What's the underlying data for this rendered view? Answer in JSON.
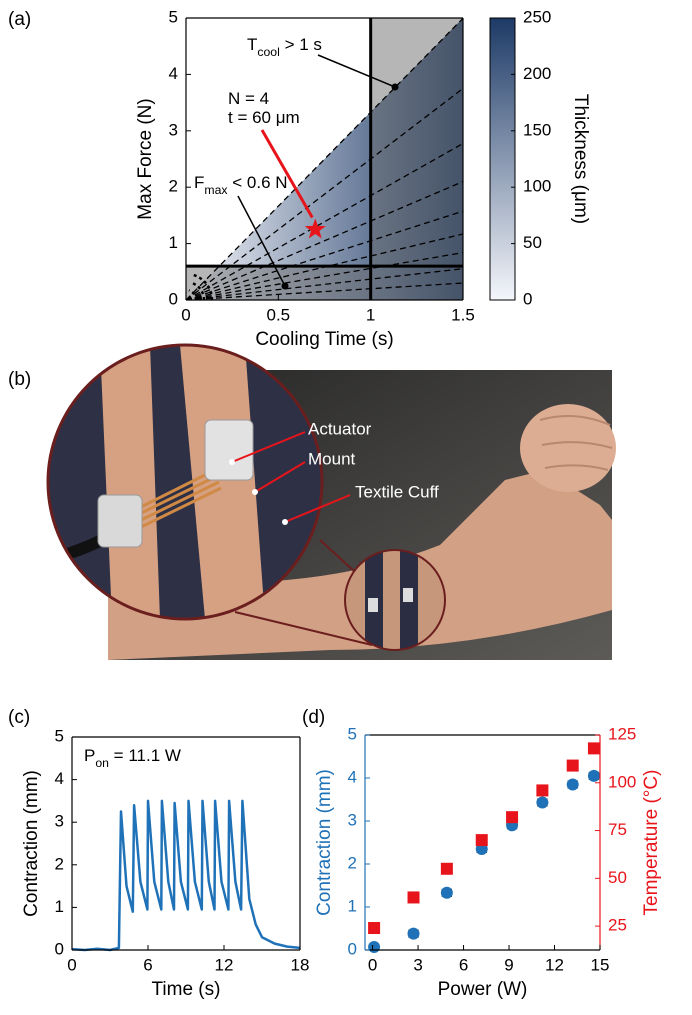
{
  "chart_data": [
    {
      "type": "contour",
      "panel_label": "(a)",
      "xlabel": "Cooling Time (s)",
      "ylabel": "Max Force (N)",
      "xlim": [
        0,
        1.5
      ],
      "ylim": [
        0,
        5
      ],
      "xticks": [
        0,
        0.5,
        1,
        1.5
      ],
      "yticks": [
        0,
        1,
        2,
        3,
        4,
        5
      ],
      "colorbar": {
        "label": "Thickness (μm)",
        "lim": [
          0,
          250
        ],
        "ticks": [
          0,
          50,
          100,
          150,
          200,
          250
        ],
        "colors": [
          "#f4f6fb",
          "#1d3a66"
        ]
      },
      "thresholds": {
        "x": 1,
        "y": 0.6
      },
      "marker": {
        "x": 0.7,
        "y": 1.25,
        "color": "#e8141b"
      },
      "annotations": [
        {
          "parts": [
            "T",
            "cool",
            " > 1 s"
          ]
        },
        {
          "parts": [
            "N = 4"
          ]
        },
        {
          "parts": [
            "t = 60 μm"
          ]
        },
        {
          "parts": [
            "F",
            "max",
            " < 0.6 N"
          ]
        }
      ]
    },
    {
      "type": "line",
      "panel_label": "(c)",
      "xlabel": "Time (s)",
      "ylabel": "Contraction (mm)",
      "xlim": [
        0,
        18
      ],
      "ylim": [
        0,
        5
      ],
      "xticks": [
        0,
        6,
        12,
        18
      ],
      "yticks": [
        0,
        1,
        2,
        3,
        4,
        5
      ],
      "annotations": [
        {
          "parts": [
            "P",
            "on",
            " = 11.1 W"
          ]
        }
      ],
      "x": [
        0,
        1,
        2,
        3,
        3.7,
        3.87,
        4.3,
        4.8,
        4.9,
        5.4,
        5.95,
        6.0,
        6.5,
        7.05,
        7.1,
        7.6,
        8.05,
        8.1,
        8.6,
        9.15,
        9.2,
        9.7,
        10.25,
        10.3,
        10.8,
        11.25,
        11.3,
        11.8,
        12.35,
        12.4,
        12.9,
        13.35,
        13.45,
        14,
        14.5,
        15,
        16,
        17,
        18
      ],
      "series": [
        {
          "color": "#1f72b8",
          "values": [
            0.02,
            0,
            0.03,
            0,
            0.05,
            3.25,
            1.5,
            0.9,
            3.4,
            1.6,
            0.95,
            3.5,
            1.6,
            0.95,
            3.5,
            1.6,
            0.95,
            3.45,
            1.6,
            0.95,
            3.5,
            1.6,
            0.95,
            3.5,
            1.6,
            0.95,
            3.5,
            1.6,
            0.95,
            3.5,
            1.6,
            0.95,
            3.5,
            1.2,
            0.6,
            0.3,
            0.15,
            0.08,
            0.05
          ]
        }
      ]
    },
    {
      "type": "scatter",
      "panel_label": "(d)",
      "xlabel": "Power (W)",
      "ylabel": "Contraction (mm)",
      "y2label": "Temperature (°C)",
      "xlim": [
        -0.5,
        15
      ],
      "ylim": [
        0,
        5
      ],
      "y2lim": [
        12.5,
        125
      ],
      "xticks": [
        0,
        3,
        6,
        9,
        12,
        15
      ],
      "yticks": [
        0,
        1,
        2,
        3,
        4,
        5
      ],
      "y2ticks": [
        25,
        50,
        75,
        100,
        125
      ],
      "x": [
        0.1,
        2.7,
        4.9,
        7.2,
        9.2,
        11.2,
        13.2,
        14.6
      ],
      "series": [
        {
          "color": "#1f72b8",
          "marker": "circle",
          "values": [
            0.07,
            0.38,
            1.33,
            2.35,
            2.9,
            3.43,
            3.85,
            4.05
          ],
          "xerr": [
            0.2,
            0.3,
            0.3,
            0.3,
            0.3,
            0.3,
            0.3,
            0.3
          ]
        },
        {
          "color": "#e8141b",
          "marker": "square",
          "axis": "y2",
          "values": [
            24,
            40,
            55,
            70,
            82,
            96,
            109,
            118
          ]
        }
      ]
    }
  ],
  "photo": {
    "label": "(b)",
    "callouts": [
      "Actuator",
      "Mount",
      "Textile Cuff"
    ]
  }
}
